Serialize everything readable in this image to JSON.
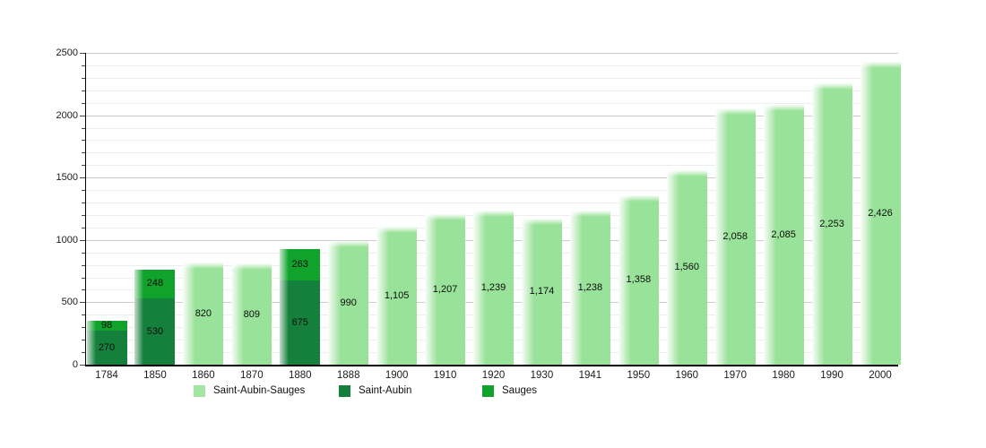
{
  "chart_data": {
    "type": "bar",
    "stacked": true,
    "title": "",
    "xlabel": "",
    "ylabel": "",
    "ylim": [
      0,
      2500
    ],
    "ytick_labels": [
      "0",
      "500",
      "1000",
      "1500",
      "2000",
      "2500"
    ],
    "ytick_step": 500,
    "minor_grid_step": 100,
    "grid": true,
    "legend_position": "bottom",
    "categories": [
      "1784",
      "1850",
      "1860",
      "1870",
      "1880",
      "1888",
      "1900",
      "1910",
      "1920",
      "1930",
      "1941",
      "1950",
      "1960",
      "1970",
      "1980",
      "1990",
      "2000"
    ],
    "series_colors": {
      "Saint-Aubin-Sauges": "#99e299",
      "Saint-Aubin": "#15803c",
      "Sauges": "#0fa32c"
    },
    "bars": [
      {
        "year": "1784",
        "segments": [
          {
            "series": "Saint-Aubin",
            "value": 270,
            "label": "270"
          },
          {
            "series": "Sauges",
            "value": 98,
            "label": "98"
          }
        ]
      },
      {
        "year": "1850",
        "segments": [
          {
            "series": "Saint-Aubin",
            "value": 530,
            "label": "530"
          },
          {
            "series": "Sauges",
            "value": 248,
            "label": "248"
          }
        ]
      },
      {
        "year": "1860",
        "segments": [
          {
            "series": "Saint-Aubin-Sauges",
            "value": 820,
            "label": "820"
          }
        ]
      },
      {
        "year": "1870",
        "segments": [
          {
            "series": "Saint-Aubin-Sauges",
            "value": 809,
            "label": "809"
          }
        ]
      },
      {
        "year": "1880",
        "segments": [
          {
            "series": "Saint-Aubin",
            "value": 675,
            "label": "675"
          },
          {
            "series": "Sauges",
            "value": 263,
            "label": "263"
          }
        ]
      },
      {
        "year": "1888",
        "segments": [
          {
            "series": "Saint-Aubin-Sauges",
            "value": 990,
            "label": "990"
          }
        ]
      },
      {
        "year": "1900",
        "segments": [
          {
            "series": "Saint-Aubin-Sauges",
            "value": 1105,
            "label": "1,105"
          }
        ]
      },
      {
        "year": "1910",
        "segments": [
          {
            "series": "Saint-Aubin-Sauges",
            "value": 1207,
            "label": "1,207"
          }
        ]
      },
      {
        "year": "1920",
        "segments": [
          {
            "series": "Saint-Aubin-Sauges",
            "value": 1239,
            "label": "1,239"
          }
        ]
      },
      {
        "year": "1930",
        "segments": [
          {
            "series": "Saint-Aubin-Sauges",
            "value": 1174,
            "label": "1,174"
          }
        ]
      },
      {
        "year": "1941",
        "segments": [
          {
            "series": "Saint-Aubin-Sauges",
            "value": 1238,
            "label": "1,238"
          }
        ]
      },
      {
        "year": "1950",
        "segments": [
          {
            "series": "Saint-Aubin-Sauges",
            "value": 1358,
            "label": "1,358"
          }
        ]
      },
      {
        "year": "1960",
        "segments": [
          {
            "series": "Saint-Aubin-Sauges",
            "value": 1560,
            "label": "1,560"
          }
        ]
      },
      {
        "year": "1970",
        "segments": [
          {
            "series": "Saint-Aubin-Sauges",
            "value": 2058,
            "label": "2,058"
          }
        ]
      },
      {
        "year": "1980",
        "segments": [
          {
            "series": "Saint-Aubin-Sauges",
            "value": 2085,
            "label": "2,085"
          }
        ]
      },
      {
        "year": "1990",
        "segments": [
          {
            "series": "Saint-Aubin-Sauges",
            "value": 2253,
            "label": "2,253"
          }
        ]
      },
      {
        "year": "2000",
        "segments": [
          {
            "series": "Saint-Aubin-Sauges",
            "value": 2426,
            "label": "2,426"
          }
        ]
      }
    ]
  },
  "legend": {
    "items": [
      {
        "label": "Saint-Aubin-Sauges",
        "series": "Saint-Aubin-Sauges",
        "swatch_color": "#a3e6a3"
      },
      {
        "label": "Saint-Aubin",
        "series": "Saint-Aubin",
        "swatch_color": "#15803c"
      },
      {
        "label": "Sauges",
        "series": "Sauges",
        "swatch_color": "#0fa32c"
      }
    ]
  }
}
